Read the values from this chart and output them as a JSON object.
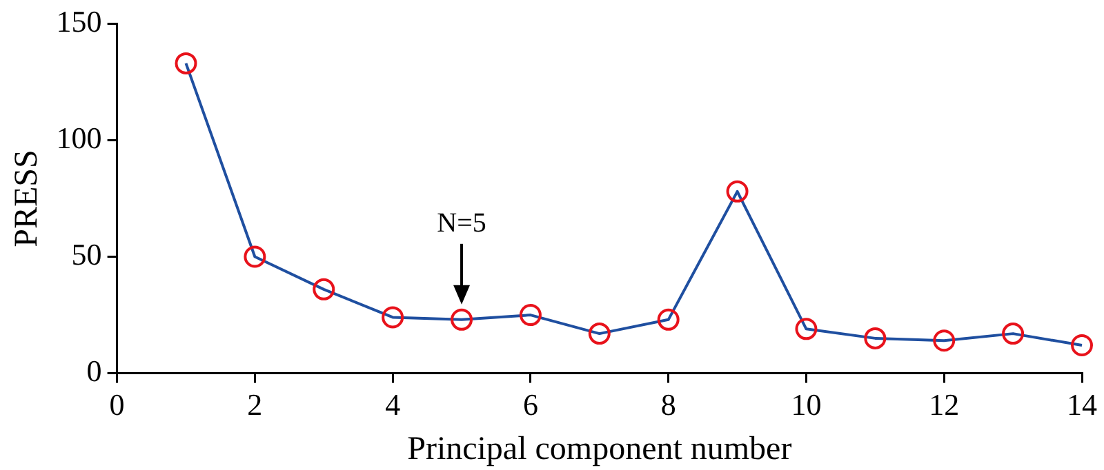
{
  "chart_data": {
    "type": "line",
    "xlabel": "Principal component number",
    "ylabel": "PRESS",
    "x": [
      1,
      2,
      3,
      4,
      5,
      6,
      7,
      8,
      9,
      10,
      11,
      12,
      13,
      14
    ],
    "series": [
      {
        "color": "#1f4fa0",
        "values": [
          133,
          50,
          36,
          24,
          23,
          25,
          17,
          23,
          78,
          19,
          15,
          14,
          17,
          12
        ]
      }
    ],
    "xlim": [
      0,
      14
    ],
    "xticks": [
      0,
      2,
      4,
      6,
      8,
      10,
      12,
      14
    ],
    "ylim": [
      0,
      150
    ],
    "yticks": [
      0,
      50,
      100,
      150
    ],
    "grid": false,
    "legend": false,
    "marker": "circle",
    "line_style": "solid",
    "annotations": [
      {
        "text": "N=5",
        "x": 5,
        "y": 23
      }
    ]
  }
}
